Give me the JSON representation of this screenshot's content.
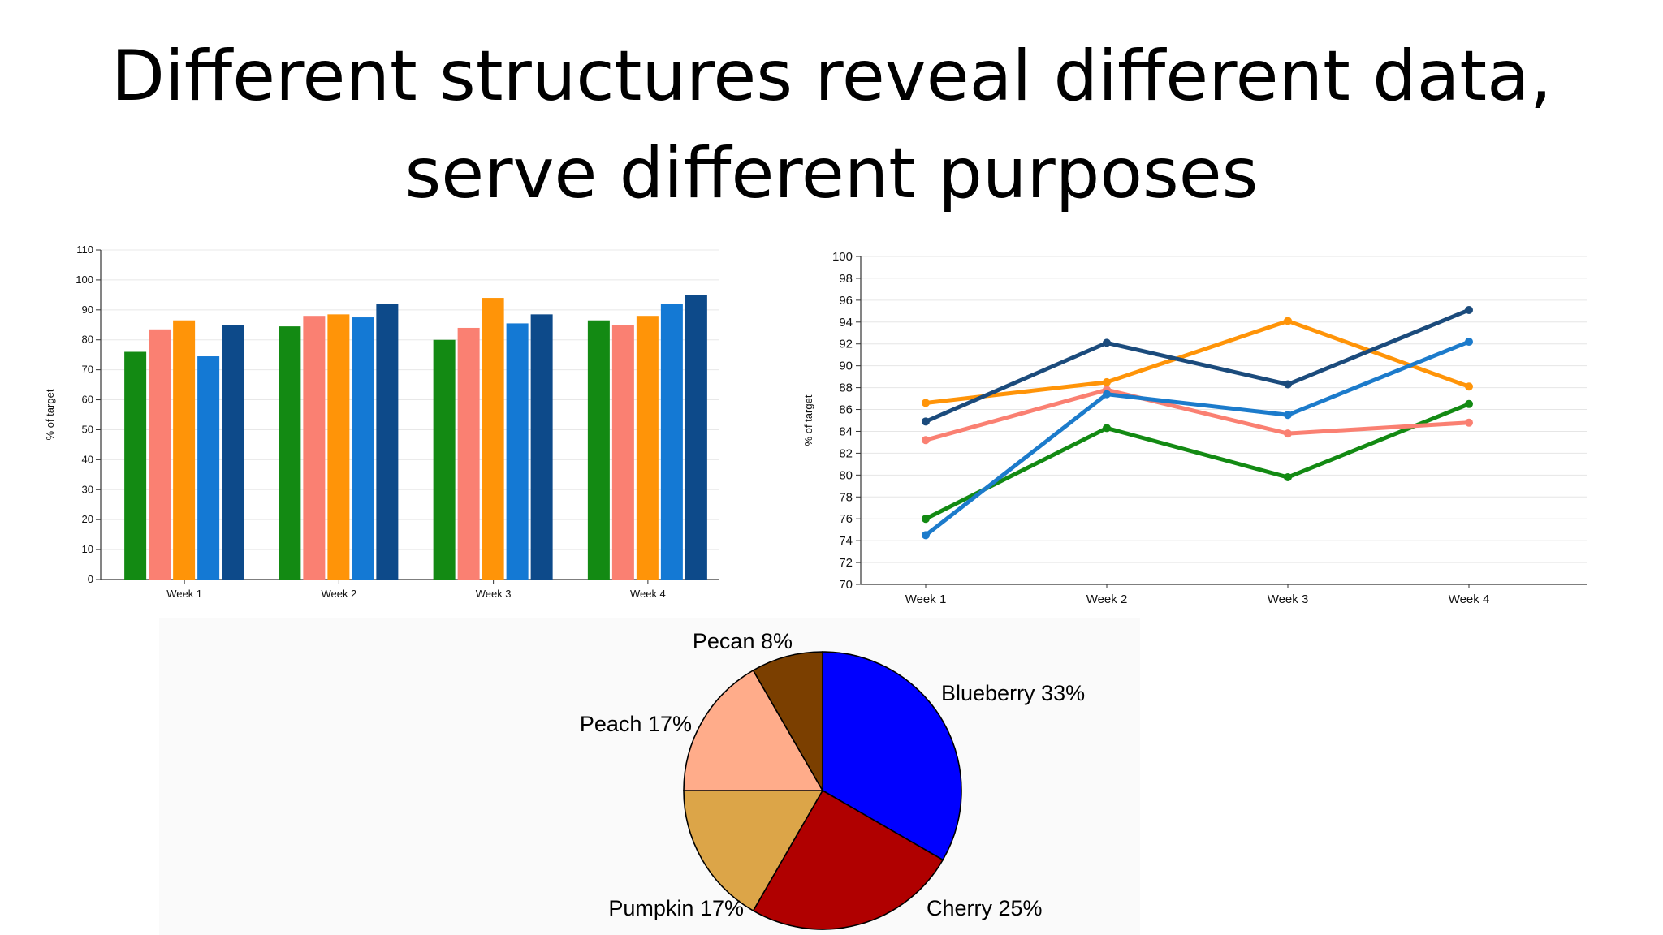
{
  "title": {
    "line1": "Different structures reveal different data,",
    "line2": "serve different purposes"
  },
  "colors": {
    "green": "#138a13",
    "salmon": "#fa8072",
    "orange": "#ff9408",
    "blue": "#1479d4",
    "navy": "#0d4a8a"
  },
  "chart_data": [
    {
      "type": "bar",
      "ylabel": "% of target",
      "ylim": [
        0,
        110
      ],
      "yticks": [
        0,
        10,
        20,
        30,
        40,
        50,
        60,
        70,
        80,
        90,
        100,
        110
      ],
      "categories": [
        "Week 1",
        "Week 2",
        "Week 3",
        "Week 4"
      ],
      "grid": true,
      "series": [
        {
          "color": "#138a13",
          "values": [
            76,
            84.5,
            80,
            86.5
          ]
        },
        {
          "color": "#fa8072",
          "values": [
            83.5,
            88,
            84,
            85
          ]
        },
        {
          "color": "#ff9408",
          "values": [
            86.5,
            88.5,
            94,
            88
          ]
        },
        {
          "color": "#1479d4",
          "values": [
            74.5,
            87.5,
            85.5,
            92
          ]
        },
        {
          "color": "#0d4a8a",
          "values": [
            85,
            92,
            88.5,
            95
          ]
        }
      ]
    },
    {
      "type": "line",
      "ylabel": "% of target",
      "ylim": [
        70,
        100
      ],
      "yticks": [
        70,
        72,
        74,
        76,
        78,
        80,
        82,
        84,
        86,
        88,
        90,
        92,
        94,
        96,
        98,
        100
      ],
      "categories": [
        "Week 1",
        "Week 2",
        "Week 3",
        "Week 4"
      ],
      "grid": true,
      "series": [
        {
          "color": "#138a13",
          "values": [
            76,
            84.3,
            79.8,
            86.5
          ]
        },
        {
          "color": "#fa8072",
          "values": [
            83.2,
            87.8,
            83.8,
            84.8
          ]
        },
        {
          "color": "#ff9408",
          "values": [
            86.6,
            88.5,
            94.1,
            88.1
          ]
        },
        {
          "color": "#1c7bcb",
          "values": [
            74.5,
            87.4,
            85.5,
            92.2
          ]
        },
        {
          "color": "#1b4b7c",
          "values": [
            84.9,
            92.1,
            88.3,
            95.1
          ]
        }
      ]
    },
    {
      "type": "pie",
      "slices": [
        {
          "label": "Blueberry 33%",
          "value": 33.33,
          "color": "#0000ff"
        },
        {
          "label": "Cherry 25%",
          "value": 25,
          "color": "#b00000"
        },
        {
          "label": "Pumpkin 17%",
          "value": 16.67,
          "color": "#dca548"
        },
        {
          "label": "Peach 17%",
          "value": 16.67,
          "color": "#ffac8a"
        },
        {
          "label": "Pecan 8%",
          "value": 8.33,
          "color": "#7b3f00"
        }
      ]
    }
  ]
}
